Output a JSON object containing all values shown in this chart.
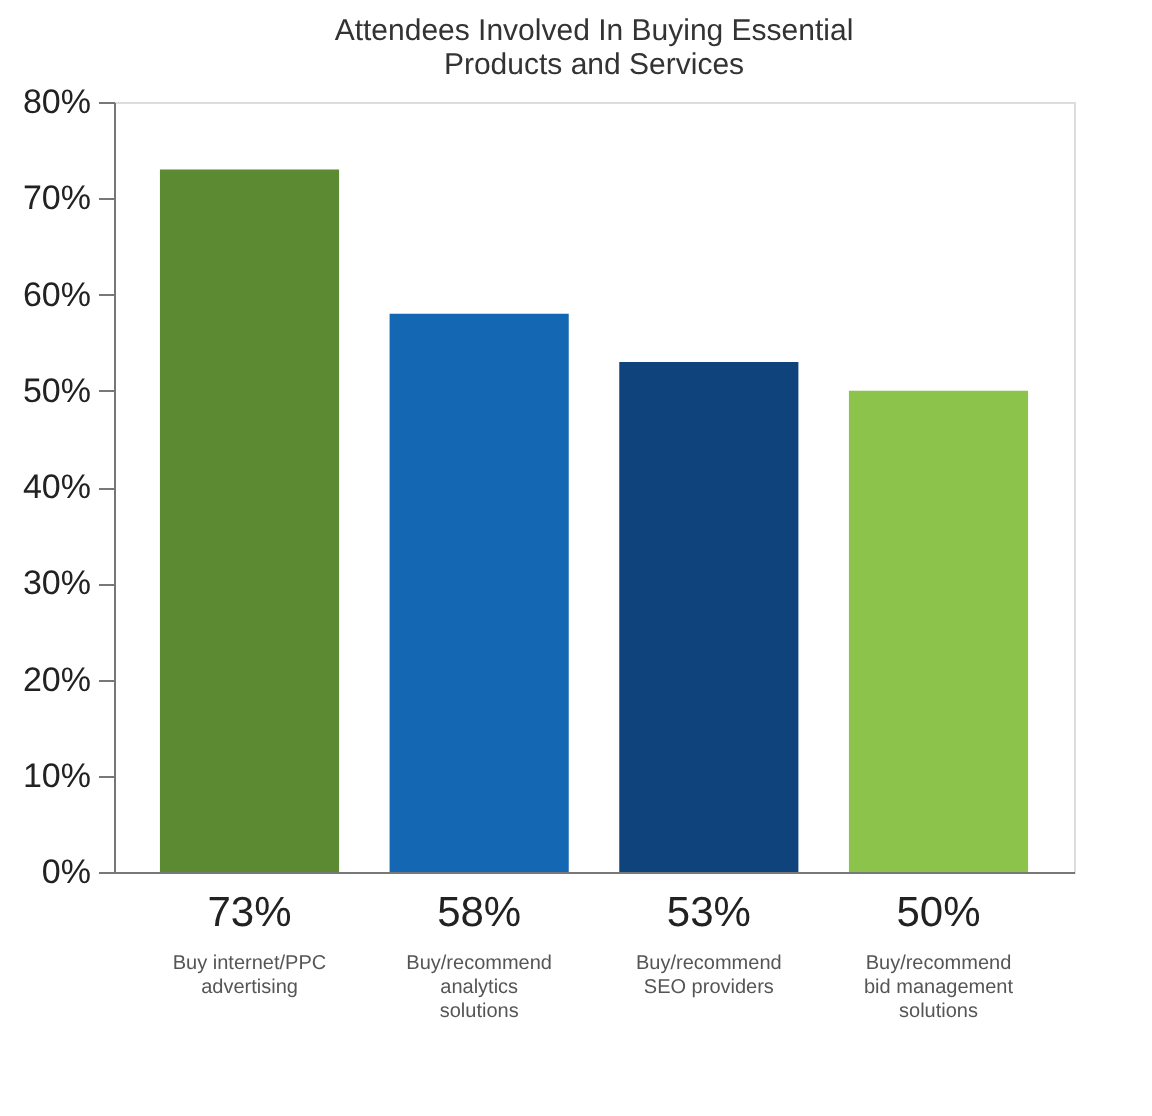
{
  "chart_data": {
    "type": "bar",
    "title": [
      "Attendees Involved In Buying Essential",
      "Products and Services"
    ],
    "categories": [
      "Buy internet/PPC advertising",
      "Buy/recommend analytics solutions",
      "Buy/recommend SEO providers",
      "Buy/recommend bid management solutions"
    ],
    "values": [
      73,
      58,
      53,
      50
    ],
    "colors": [
      "#5b8a32",
      "#1467b3",
      "#0f437c",
      "#8cc34a"
    ],
    "value_labels": [
      "73%",
      "58%",
      "53%",
      "50%"
    ],
    "ylim": [
      0,
      80
    ],
    "yticks": [
      {
        "value": 0,
        "label": "0%"
      },
      {
        "value": 10,
        "label": "10%"
      },
      {
        "value": 20,
        "label": "20%"
      },
      {
        "value": 30,
        "label": "30%"
      },
      {
        "value": 40,
        "label": "40%"
      },
      {
        "value": 50,
        "label": "50%"
      },
      {
        "value": 60,
        "label": "60%"
      },
      {
        "value": 70,
        "label": "70%"
      },
      {
        "value": 80,
        "label": "80%"
      }
    ],
    "grid": false
  }
}
